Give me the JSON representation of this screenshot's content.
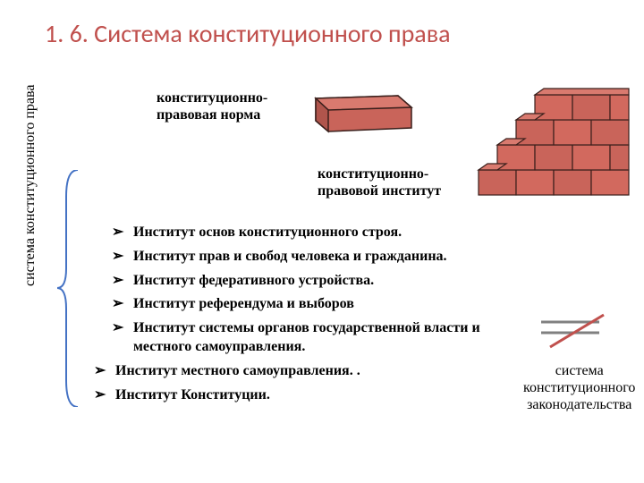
{
  "title": "1. 6. Система конституционного права",
  "vertical_label": "система конституционного права",
  "label1": "конституционно-\nправовая норма",
  "label2": "конституционно-\nправовой институт",
  "label3": "система\nконституционного\nзаконодательства",
  "bullets": [
    {
      "text": "Институт основ конституционного строя.",
      "indent": true
    },
    {
      "text": "Институт прав и свобод человека и гражданина.",
      "indent": true
    },
    {
      "text": "Институт федеративного устройства.",
      "indent": true
    },
    {
      "text": "Институт референдума и выборов",
      "indent": true
    },
    {
      "text": "Институт системы органов государственной власти и местного самоуправления.",
      "indent": true
    },
    {
      "text": "Институт местного самоуправления. .",
      "indent": false
    },
    {
      "text": "Институт Конституции.",
      "indent": false
    }
  ],
  "colors": {
    "title": "#c0504d",
    "brick_fill": "#d2695e",
    "brick_stroke": "#5a2d28",
    "line_gray": "#808080",
    "line_red": "#c0504d",
    "brace": "#4472c4"
  },
  "fontsizes": {
    "title": 28,
    "body": 16
  }
}
